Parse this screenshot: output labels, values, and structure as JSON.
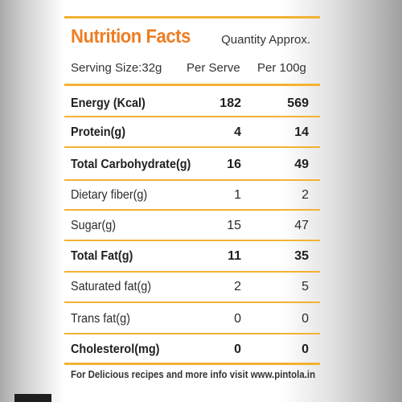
{
  "label": {
    "title": "Nutrition Facts",
    "quantity_note": "Quantity Approx.",
    "serving_size": "Serving Size:32g",
    "col_per_serve": "Per Serve",
    "col_per_100g": "Per 100g"
  },
  "rows": [
    {
      "name": "Energy (Kcal)",
      "per_serve": "182",
      "per_100g": "569",
      "bold": true
    },
    {
      "name": "Protein(g)",
      "per_serve": "4",
      "per_100g": "14",
      "bold": true
    },
    {
      "name": "Total Carbohydrate(g)",
      "per_serve": "16",
      "per_100g": "49",
      "bold": true
    },
    {
      "name": "Dietary fiber(g)",
      "per_serve": "1",
      "per_100g": "2",
      "bold": false
    },
    {
      "name": "Sugar(g)",
      "per_serve": "15",
      "per_100g": "47",
      "bold": false
    },
    {
      "name": "Total Fat(g)",
      "per_serve": "11",
      "per_100g": "35",
      "bold": true
    },
    {
      "name": "Saturated fat(g)",
      "per_serve": "2",
      "per_100g": "5",
      "bold": false
    },
    {
      "name": "Trans fat(g)",
      "per_serve": "0",
      "per_100g": "0",
      "bold": false
    },
    {
      "name": "Cholesterol(mg)",
      "per_serve": "0",
      "per_100g": "0",
      "bold": true
    }
  ],
  "footer": "For Delicious recipes and more info visit www.pintola.in",
  "colors": {
    "title": "#ee7d22",
    "rule": "#f2b233",
    "text": "#2b2b2b"
  }
}
